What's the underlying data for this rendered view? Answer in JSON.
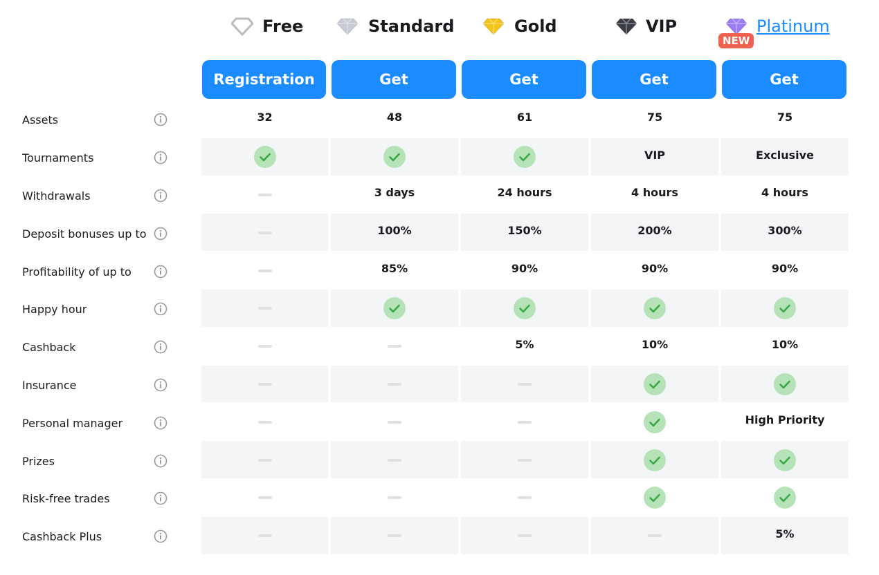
{
  "plans": [
    {
      "name": "Free",
      "button": "Registration"
    },
    {
      "name": "Standard",
      "button": "Get"
    },
    {
      "name": "Gold",
      "button": "Get"
    },
    {
      "name": "VIP",
      "button": "Get"
    },
    {
      "name": "Platinum",
      "button": "Get",
      "badge": "NEW"
    }
  ],
  "rows": [
    {
      "label": "Assets",
      "cells": [
        32,
        48,
        61,
        75,
        75
      ]
    },
    {
      "label": "Tournaments",
      "cells": [
        true,
        true,
        true,
        "VIP",
        "Exclusive"
      ]
    },
    {
      "label": "Withdrawals",
      "cells": [
        false,
        "3 days",
        "24 hours",
        "4 hours",
        "4 hours"
      ]
    },
    {
      "label": "Deposit bonuses up to",
      "cells": [
        false,
        "100%",
        "150%",
        "200%",
        "300%"
      ]
    },
    {
      "label": "Profitability of up to",
      "cells": [
        false,
        "85%",
        "90%",
        "90%",
        "90%"
      ]
    },
    {
      "label": "Happy hour",
      "cells": [
        false,
        true,
        true,
        true,
        true
      ]
    },
    {
      "label": "Cashback",
      "cells": [
        false,
        false,
        "5%",
        "10%",
        "10%"
      ]
    },
    {
      "label": "Insurance",
      "cells": [
        false,
        false,
        false,
        true,
        true
      ]
    },
    {
      "label": "Personal manager",
      "cells": [
        false,
        false,
        false,
        true,
        "High Priority"
      ]
    },
    {
      "label": "Prizes",
      "cells": [
        false,
        false,
        false,
        true,
        true
      ]
    },
    {
      "label": "Risk-free trades",
      "cells": [
        false,
        false,
        false,
        true,
        true
      ]
    },
    {
      "label": "Cashback Plus",
      "cells": [
        false,
        false,
        false,
        false,
        "5%"
      ]
    }
  ]
}
